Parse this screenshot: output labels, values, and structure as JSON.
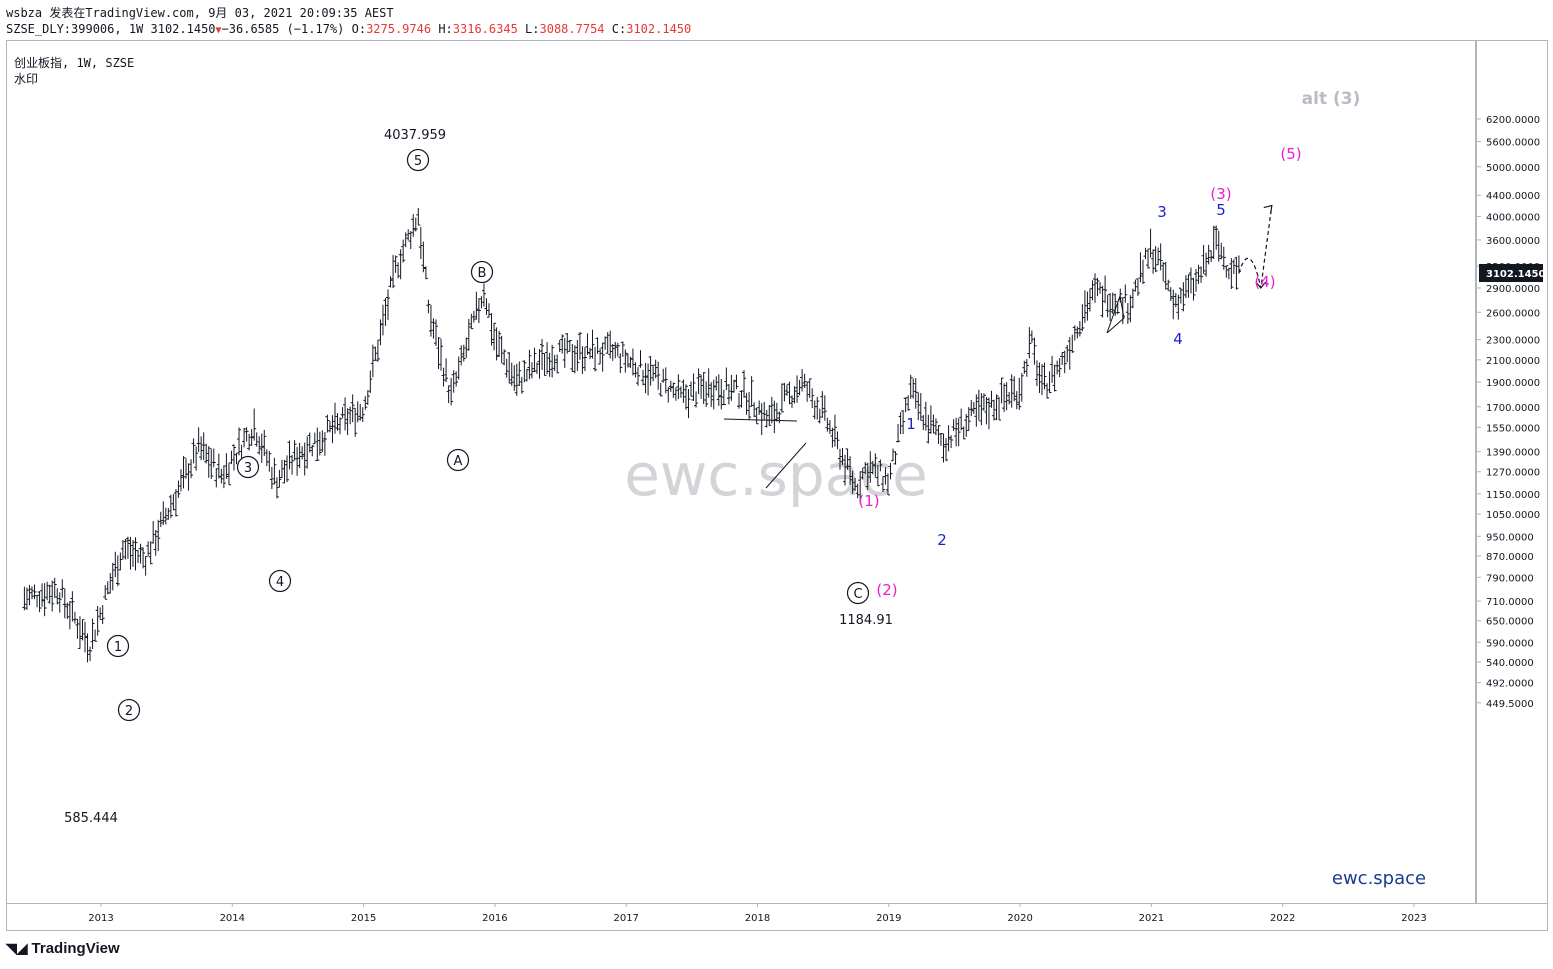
{
  "header": {
    "user": "wsbza",
    "published_text": "发表在TradingView.com,",
    "datetime": "9月 03, 2021 20:09:35 AEST",
    "symbol_line_prefix": "SZSE_DLY:399006, 1W 3102.1450",
    "change": "−36.6585 (−1.17%)",
    "open_label": "O:",
    "open": "3275.9746",
    "high_label": "H:",
    "high": "3316.6345",
    "low_label": "L:",
    "low": "3088.7754",
    "close_label": "C:",
    "close": "3102.1450"
  },
  "chart_legend": {
    "title": "创业板指, 1W, SZSE",
    "watermark_label": "水印"
  },
  "watermark": "ewc.space",
  "brand_text": "ewc.space",
  "alt_label": "alt (3)",
  "footer": {
    "logo_text": "TradingView"
  },
  "colors": {
    "magenta": "#e91ecf",
    "blue": "#1f1fd1",
    "gray": "#b8bcc4",
    "black": "#131722",
    "price_tag_bg": "#131722"
  },
  "price_axis": {
    "ticks": [
      "6200.0000",
      "5600.0000",
      "5000.0000",
      "4400.0000",
      "4000.0000",
      "3600.0000",
      "3200.0000",
      "2900.0000",
      "2600.0000",
      "2300.0000",
      "2100.0000",
      "1900.0000",
      "1700.0000",
      "1550.0000",
      "1390.0000",
      "1270.0000",
      "1150.0000",
      "1050.0000",
      "950.0000",
      "870.0000",
      "790.0000",
      "710.0000",
      "650.0000",
      "590.0000",
      "540.0000",
      "492.0000",
      "449.5000"
    ],
    "current_price_tag": "3102.1450"
  },
  "time_axis": {
    "ticks": [
      "2013",
      "2014",
      "2015",
      "2016",
      "2017",
      "2018",
      "2019",
      "2020",
      "2021",
      "2022",
      "2023"
    ]
  },
  "annotations": {
    "price_labels": [
      "4037.959",
      "585.444",
      "1184.91"
    ],
    "circled_waves": [
      "1",
      "2",
      "3",
      "4",
      "5",
      "A",
      "B",
      "C"
    ],
    "magenta_waves": [
      "(1)",
      "(2)",
      "(3)",
      "(4)",
      "(5)"
    ],
    "blue_waves": [
      "1",
      "2",
      "3",
      "4",
      "5"
    ]
  },
  "chart_data": {
    "type": "line",
    "title": "创业板指, 1W, SZSE",
    "x_scale": "time",
    "y_scale": "log",
    "ylim": [
      420,
      6500
    ],
    "xlabel": "",
    "ylabel": "",
    "series": [
      {
        "x": [
          "2012-06",
          "2012-09",
          "2012-12",
          "2013-02",
          "2013-03",
          "2013-05",
          "2013-10",
          "2013-12",
          "2014-03",
          "2014-05",
          "2014-07",
          "2015-01",
          "2015-04",
          "2015-06",
          "2015-07",
          "2015-09",
          "2015-12",
          "2016-01",
          "2016-03",
          "2016-06",
          "2016-09",
          "2016-12",
          "2017-04",
          "2017-06",
          "2017-09",
          "2017-12",
          "2018-02",
          "2018-05",
          "2018-07",
          "2018-10",
          "2018-11",
          "2019-01",
          "2019-03",
          "2019-04",
          "2019-06",
          "2019-09",
          "2020-01",
          "2020-02",
          "2020-03",
          "2020-05",
          "2020-07",
          "2020-08",
          "2020-11",
          "2021-01",
          "2021-02",
          "2021-03",
          "2021-05",
          "2021-07",
          "2021-08",
          "2021-09"
        ],
        "y": [
          720,
          750,
          585,
          790,
          900,
          860,
          1420,
          1250,
          1570,
          1220,
          1380,
          1700,
          3200,
          4038,
          2600,
          1780,
          2880,
          2300,
          1900,
          2150,
          2180,
          2170,
          1920,
          1770,
          1880,
          1800,
          1600,
          1900,
          1650,
          1184.91,
          1300,
          1220,
          1830,
          1650,
          1450,
          1650,
          1850,
          2280,
          1850,
          2100,
          2700,
          2850,
          2700,
          3470,
          3150,
          2720,
          2950,
          3570,
          3200,
          3102
        ]
      }
    ],
    "projection": {
      "x": [
        "2021-09",
        "2021-10",
        "2021-11",
        "2021-12"
      ],
      "y": [
        3102,
        3450,
        2900,
        4200
      ]
    }
  }
}
